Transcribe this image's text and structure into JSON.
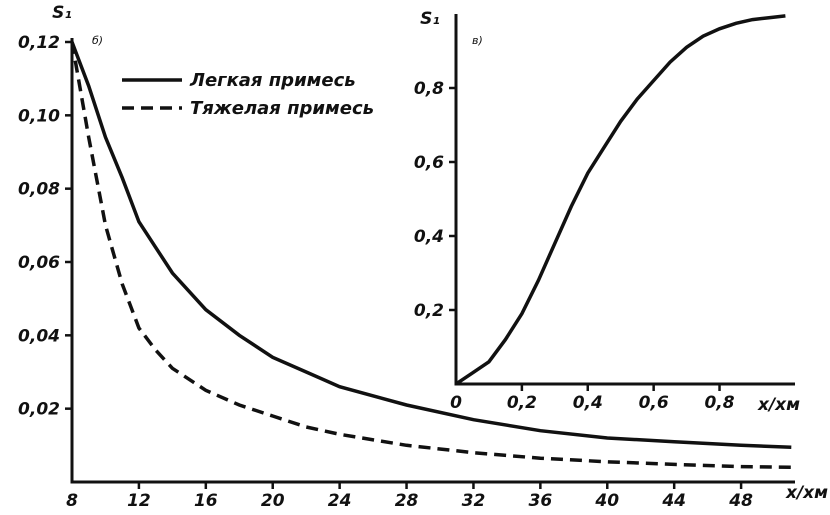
{
  "chart_data": [
    {
      "type": "line",
      "panel_label": "б)",
      "ylabel": "S₁",
      "xlabel": "x/xм",
      "xlim": [
        8,
        52
      ],
      "ylim": [
        0,
        0.12
      ],
      "x_ticks": [
        "8",
        "12",
        "16",
        "20",
        "24",
        "28",
        "32",
        "36",
        "40",
        "44",
        "48"
      ],
      "y_ticks": [
        "0,02",
        "0,04",
        "0,06",
        "0,08",
        "0,10",
        "0,12"
      ],
      "legend_position": "top-center",
      "series": [
        {
          "name": "Легкая примесь",
          "style": "solid",
          "x": [
            8,
            9,
            10,
            11,
            12,
            13,
            14,
            16,
            18,
            20,
            22,
            24,
            28,
            32,
            36,
            40,
            44,
            48,
            51
          ],
          "y": [
            0.12,
            0.108,
            0.094,
            0.083,
            0.071,
            0.064,
            0.057,
            0.047,
            0.04,
            0.034,
            0.03,
            0.026,
            0.021,
            0.017,
            0.014,
            0.012,
            0.011,
            0.01,
            0.0095
          ]
        },
        {
          "name": "Тяжелая примесь",
          "style": "dashed",
          "x": [
            8,
            9,
            10,
            11,
            12,
            13,
            14,
            16,
            18,
            20,
            22,
            24,
            28,
            32,
            36,
            40,
            44,
            48,
            51
          ],
          "y": [
            0.12,
            0.094,
            0.07,
            0.054,
            0.042,
            0.036,
            0.031,
            0.025,
            0.021,
            0.018,
            0.015,
            0.013,
            0.01,
            0.008,
            0.0065,
            0.0055,
            0.0048,
            0.0042,
            0.004
          ]
        }
      ]
    },
    {
      "type": "line",
      "panel_label": "в)",
      "ylabel": "S₁",
      "xlabel": "x/xм",
      "xlim": [
        0,
        1.02
      ],
      "ylim": [
        0,
        1.0
      ],
      "x_ticks": [
        "0",
        "0,2",
        "0,4",
        "0,6",
        "0,8"
      ],
      "y_ticks": [
        "0,2",
        "0,4",
        "0,6",
        "0,8"
      ],
      "series": [
        {
          "x": [
            0,
            0.05,
            0.1,
            0.15,
            0.2,
            0.25,
            0.3,
            0.35,
            0.4,
            0.45,
            0.5,
            0.55,
            0.6,
            0.65,
            0.7,
            0.75,
            0.8,
            0.85,
            0.9,
            0.95,
            1.0
          ],
          "y": [
            0,
            0.03,
            0.06,
            0.12,
            0.19,
            0.28,
            0.38,
            0.48,
            0.57,
            0.64,
            0.71,
            0.77,
            0.82,
            0.87,
            0.91,
            0.94,
            0.96,
            0.975,
            0.985,
            0.99,
            0.995
          ]
        }
      ]
    }
  ]
}
